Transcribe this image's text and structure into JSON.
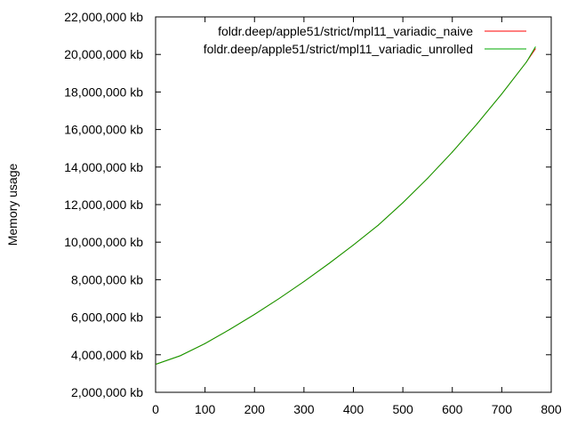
{
  "chart_data": {
    "type": "line",
    "title": "",
    "xlabel": "",
    "ylabel": "Memory usage",
    "xlim": [
      0,
      800
    ],
    "ylim": [
      2000000,
      22000000
    ],
    "x_ticks": [
      0,
      100,
      200,
      300,
      400,
      500,
      600,
      700,
      800
    ],
    "x_tick_labels": [
      "0",
      "100",
      "200",
      "300",
      "400",
      "500",
      "600",
      "700",
      "800"
    ],
    "y_ticks": [
      2000000,
      4000000,
      6000000,
      8000000,
      10000000,
      12000000,
      14000000,
      16000000,
      18000000,
      20000000,
      22000000
    ],
    "y_tick_labels": [
      "2,000,000 kb",
      "4,000,000 kb",
      "6,000,000 kb",
      "8,000,000 kb",
      "10,000,000 kb",
      "12,000,000 kb",
      "14,000,000 kb",
      "16,000,000 kb",
      "18,000,000 kb",
      "20,000,000 kb",
      "22,000,000 kb"
    ],
    "grid": false,
    "legend_position": "top-right",
    "series": [
      {
        "name": "foldr.deep/apple51/strict/mpl11_variadic_naive",
        "color": "#ff0000",
        "x": [
          1,
          50,
          100,
          150,
          200,
          250,
          300,
          350,
          400,
          450,
          500,
          550,
          600,
          650,
          700,
          750,
          768
        ],
        "y": [
          3500000,
          3950000,
          4600000,
          5350000,
          6150000,
          7000000,
          7900000,
          8850000,
          9850000,
          10900000,
          12100000,
          13400000,
          14800000,
          16300000,
          17900000,
          19600000,
          20300000
        ]
      },
      {
        "name": "foldr.deep/apple51/strict/mpl11_variadic_unrolled",
        "color": "#00aa00",
        "x": [
          1,
          50,
          100,
          150,
          200,
          250,
          300,
          350,
          400,
          450,
          500,
          550,
          600,
          650,
          700,
          750,
          768
        ],
        "y": [
          3500000,
          3950000,
          4600000,
          5350000,
          6150000,
          7000000,
          7900000,
          8850000,
          9850000,
          10900000,
          12100000,
          13400000,
          14800000,
          16300000,
          17900000,
          19600000,
          20400000
        ]
      }
    ]
  }
}
